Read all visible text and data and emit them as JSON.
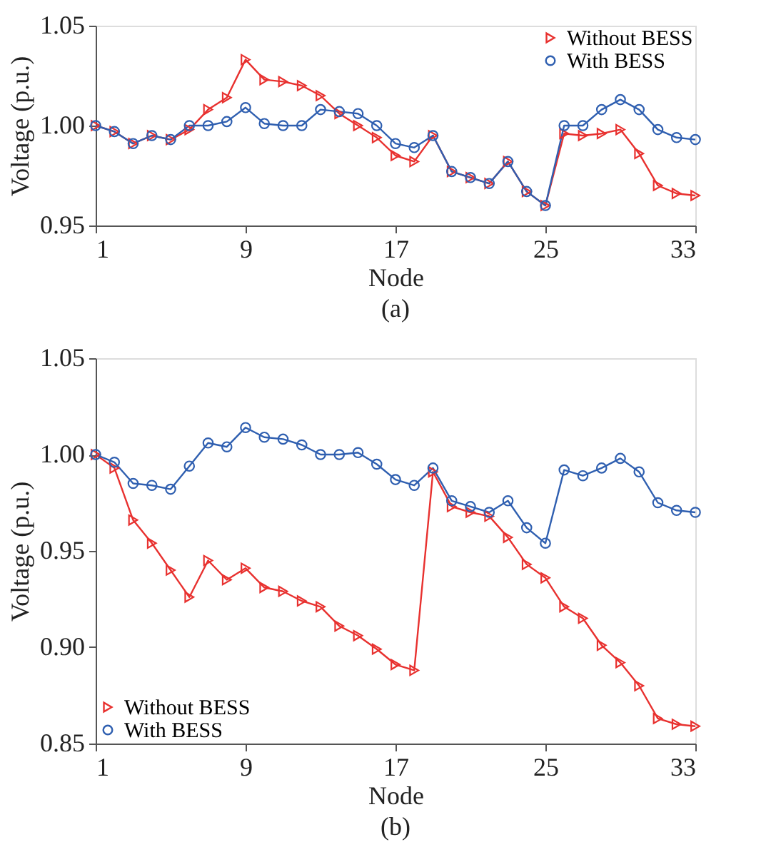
{
  "chart_data": [
    {
      "type": "line",
      "title": "(a)",
      "xlabel": "Node",
      "ylabel": "Voltage (p.u.)",
      "x": [
        1,
        2,
        3,
        4,
        5,
        6,
        7,
        8,
        9,
        10,
        11,
        12,
        13,
        14,
        15,
        16,
        17,
        18,
        19,
        20,
        21,
        22,
        23,
        24,
        25,
        26,
        27,
        28,
        29,
        30,
        31,
        32,
        33
      ],
      "series": [
        {
          "name": "Without BESS",
          "color": "#e8312f",
          "marker": "triangle",
          "values": [
            1.0,
            0.997,
            0.991,
            0.995,
            0.993,
            0.998,
            1.008,
            1.014,
            1.033,
            1.023,
            1.022,
            1.02,
            1.015,
            1.006,
            1.0,
            0.994,
            0.985,
            0.982,
            0.995,
            0.977,
            0.974,
            0.971,
            0.982,
            0.967,
            0.96,
            0.996,
            0.995,
            0.996,
            0.998,
            0.986,
            0.97,
            0.966,
            0.965
          ]
        },
        {
          "name": "With BESS",
          "color": "#2f5fb0",
          "marker": "circle",
          "values": [
            1.0,
            0.997,
            0.991,
            0.995,
            0.993,
            1.0,
            1.0,
            1.002,
            1.009,
            1.001,
            1.0,
            1.0,
            1.008,
            1.007,
            1.006,
            1.0,
            0.991,
            0.989,
            0.995,
            0.977,
            0.974,
            0.971,
            0.982,
            0.967,
            0.96,
            1.0,
            1.0,
            1.008,
            1.013,
            1.008,
            0.998,
            0.994,
            0.993
          ]
        }
      ],
      "xlim": [
        1,
        33
      ],
      "xticks": [
        1,
        9,
        17,
        25,
        33
      ],
      "ylim": [
        0.95,
        1.05
      ],
      "yticks": [
        {
          "value": 0.95,
          "label": "0.95"
        },
        {
          "value": 1.0,
          "label": "1.00"
        },
        {
          "value": 1.05,
          "label": "1.05"
        }
      ],
      "grid": false,
      "legend": "top right",
      "line_style": "solid"
    },
    {
      "type": "line",
      "title": "(b)",
      "xlabel": "Node",
      "ylabel": "Voltage (p.u.)",
      "x": [
        1,
        2,
        3,
        4,
        5,
        6,
        7,
        8,
        9,
        10,
        11,
        12,
        13,
        14,
        15,
        16,
        17,
        18,
        19,
        20,
        21,
        22,
        23,
        24,
        25,
        26,
        27,
        28,
        29,
        30,
        31,
        32,
        33
      ],
      "series": [
        {
          "name": "Without BESS",
          "color": "#e8312f",
          "marker": "triangle",
          "values": [
            1.0,
            0.993,
            0.966,
            0.954,
            0.94,
            0.926,
            0.945,
            0.935,
            0.941,
            0.931,
            0.929,
            0.924,
            0.921,
            0.911,
            0.906,
            0.899,
            0.891,
            0.888,
            0.991,
            0.973,
            0.97,
            0.968,
            0.957,
            0.943,
            0.936,
            0.921,
            0.915,
            0.901,
            0.892,
            0.88,
            0.863,
            0.86,
            0.859
          ]
        },
        {
          "name": "With BESS",
          "color": "#2f5fb0",
          "marker": "circle",
          "values": [
            1.0,
            0.996,
            0.985,
            0.984,
            0.982,
            0.994,
            1.006,
            1.004,
            1.014,
            1.009,
            1.008,
            1.005,
            1.0,
            1.0,
            1.001,
            0.995,
            0.987,
            0.984,
            0.993,
            0.976,
            0.973,
            0.97,
            0.976,
            0.962,
            0.954,
            0.992,
            0.989,
            0.993,
            0.998,
            0.991,
            0.975,
            0.971,
            0.97
          ]
        }
      ],
      "xlim": [
        1,
        33
      ],
      "xticks": [
        1,
        9,
        17,
        25,
        33
      ],
      "ylim": [
        0.85,
        1.05
      ],
      "yticks": [
        {
          "value": 0.85,
          "label": "0.85"
        },
        {
          "value": 0.9,
          "label": "0.90"
        },
        {
          "value": 0.95,
          "label": "0.95"
        },
        {
          "value": 1.0,
          "label": "1.00"
        },
        {
          "value": 1.05,
          "label": "1.05"
        }
      ],
      "grid": false,
      "legend": "bottom left",
      "line_style": "solid"
    }
  ]
}
